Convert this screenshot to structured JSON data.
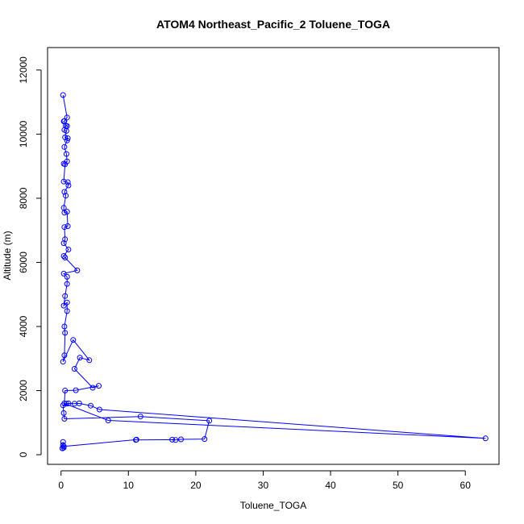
{
  "chart_data": {
    "type": "scatter",
    "title": "ATOM4 Northeast_Pacific_2 Toluene_TOGA",
    "xlabel": "Toluene_TOGA",
    "ylabel": "Altitude (m)",
    "xlim": [
      -2,
      65
    ],
    "ylim": [
      -300,
      12700
    ],
    "xticks": [
      "0",
      "10",
      "20",
      "30",
      "40",
      "50",
      "60"
    ],
    "yticks": [
      "0",
      "2000",
      "4000",
      "6000",
      "8000",
      "10000",
      "12000"
    ],
    "grid": false,
    "legend": "none",
    "color": "#0000ff",
    "series": [
      {
        "values": [
          [
            0.2,
            200
          ],
          [
            0.3,
            300
          ],
          [
            0.3,
            400
          ],
          [
            0.2,
            200
          ],
          [
            0.4,
            220
          ],
          [
            0.4,
            260
          ],
          [
            11.2,
            470
          ],
          [
            11.1,
            460
          ],
          [
            16.5,
            470
          ],
          [
            17.0,
            460
          ],
          [
            17.8,
            480
          ],
          [
            21.3,
            490
          ],
          [
            22.0,
            1060
          ],
          [
            11.8,
            1190
          ],
          [
            0.5,
            1120
          ],
          [
            0.4,
            1300
          ],
          [
            0.3,
            1540
          ],
          [
            0.8,
            1590
          ],
          [
            1.1,
            1600
          ],
          [
            2.0,
            1590
          ],
          [
            2.7,
            1600
          ],
          [
            4.4,
            1530
          ],
          [
            5.7,
            1410
          ],
          [
            63.0,
            510
          ],
          [
            7.0,
            1070
          ],
          [
            0.5,
            1600
          ],
          [
            0.6,
            2000
          ],
          [
            2.2,
            2010
          ],
          [
            5.6,
            2150
          ],
          [
            4.7,
            2090
          ],
          [
            2.0,
            2680
          ],
          [
            2.8,
            3030
          ],
          [
            4.2,
            2950
          ],
          [
            1.8,
            3580
          ],
          [
            0.3,
            2900
          ],
          [
            0.5,
            3100
          ],
          [
            0.6,
            3800
          ],
          [
            0.5,
            4000
          ],
          [
            0.9,
            4480
          ],
          [
            0.9,
            4750
          ],
          [
            0.4,
            4650
          ],
          [
            0.6,
            4950
          ],
          [
            0.9,
            5330
          ],
          [
            0.9,
            5550
          ],
          [
            0.4,
            5650
          ],
          [
            2.4,
            5750
          ],
          [
            0.6,
            6150
          ],
          [
            0.4,
            6200
          ],
          [
            1.1,
            6400
          ],
          [
            0.4,
            6600
          ],
          [
            0.6,
            6720
          ],
          [
            0.5,
            7100
          ],
          [
            1.0,
            7130
          ],
          [
            0.9,
            7580
          ],
          [
            0.5,
            7550
          ],
          [
            0.4,
            7700
          ],
          [
            0.7,
            8080
          ],
          [
            0.5,
            8200
          ],
          [
            1.1,
            8400
          ],
          [
            1.0,
            8500
          ],
          [
            0.4,
            8520
          ],
          [
            0.6,
            9060
          ],
          [
            0.4,
            9080
          ],
          [
            0.9,
            9150
          ],
          [
            0.8,
            9380
          ],
          [
            0.5,
            9600
          ],
          [
            0.9,
            9800
          ],
          [
            1.0,
            9870
          ],
          [
            0.6,
            9900
          ],
          [
            0.8,
            10100
          ],
          [
            0.5,
            10130
          ],
          [
            0.7,
            10260
          ],
          [
            0.9,
            10250
          ],
          [
            0.4,
            10400
          ],
          [
            0.5,
            10410
          ],
          [
            0.9,
            10520
          ],
          [
            0.3,
            11220
          ]
        ]
      }
    ]
  }
}
